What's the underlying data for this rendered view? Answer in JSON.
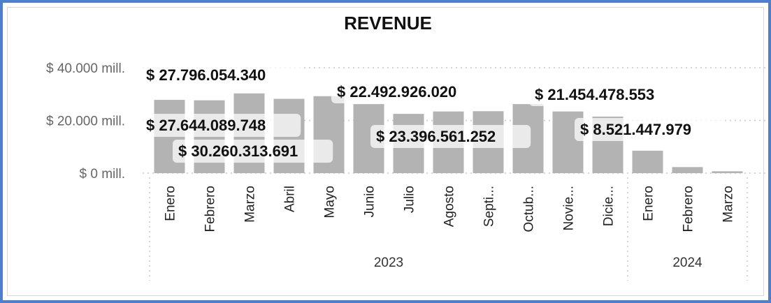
{
  "chart_data": {
    "type": "bar",
    "title": "REVENUE",
    "xlabel": "",
    "ylabel": "",
    "ylim": [
      0,
      44000
    ],
    "yunit": "mill.",
    "yticks": [
      {
        "value": 0,
        "label": "$ 0 mill."
      },
      {
        "value": 20000,
        "label": "$ 20.000 mill."
      },
      {
        "value": 40000,
        "label": "$ 40.000 mill."
      }
    ],
    "grid": true,
    "legend": "none",
    "bar_color": "#b3b3b3",
    "categories": [
      "Enero",
      "Febrero",
      "Marzo",
      "Abril",
      "Mayo",
      "Junio",
      "Julio",
      "Agosto",
      "Septi...",
      "Octub...",
      "Novie...",
      "Dicie...",
      "Enero",
      "Febrero",
      "Marzo"
    ],
    "groups": [
      {
        "label": "2023",
        "start": 0,
        "end": 11
      },
      {
        "label": "2024",
        "start": 12,
        "end": 14
      }
    ],
    "values": [
      27796.05434,
      27644.089748,
      30260.313691,
      28200,
      29200,
      26200,
      22492.92602,
      23396.561252,
      23500,
      26200,
      23400,
      21454.478553,
      8521.447979,
      2300,
      700
    ],
    "data_labels": [
      {
        "index": 0,
        "text": "$ 27.796.054.340"
      },
      {
        "index": 1,
        "text": "$ 27.644.089.748"
      },
      {
        "index": 2,
        "text": "$ 30.260.313.691"
      },
      {
        "index": 6,
        "text": "$ 22.492.926.020"
      },
      {
        "index": 7,
        "text": "$ 23.396.561.252"
      },
      {
        "index": 11,
        "text": "$ 21.454.478.553"
      },
      {
        "index": 12,
        "text": "$ 8.521.447.979"
      }
    ]
  }
}
